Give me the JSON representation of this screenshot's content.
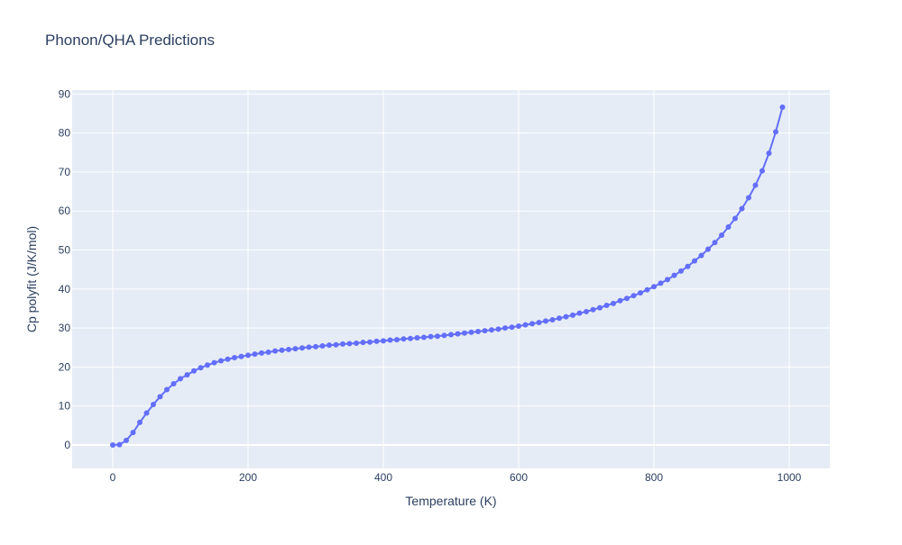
{
  "chart_data": {
    "type": "line",
    "title": "Phonon/QHA Predictions",
    "xlabel": "Temperature (K)",
    "ylabel": "Cp polyfit (J/K/mol)",
    "xlim": [
      -60,
      1060
    ],
    "ylim": [
      -6,
      91
    ],
    "xticks": [
      0,
      200,
      400,
      600,
      800,
      1000
    ],
    "yticks": [
      0,
      10,
      20,
      30,
      40,
      50,
      60,
      70,
      80,
      90
    ],
    "grid": true,
    "legend": "none",
    "colors": {
      "line": "#636efa",
      "plot_bg": "#e5ecf6",
      "grid": "#ffffff",
      "text": "#2a3f5f"
    },
    "series": [
      {
        "x": [
          0,
          10,
          20,
          30,
          40,
          50,
          60,
          70,
          80,
          90,
          100,
          110,
          120,
          130,
          140,
          150,
          160,
          170,
          180,
          190,
          200,
          210,
          220,
          230,
          240,
          250,
          260,
          270,
          280,
          290,
          300,
          310,
          320,
          330,
          340,
          350,
          360,
          370,
          380,
          390,
          400,
          410,
          420,
          430,
          440,
          450,
          460,
          470,
          480,
          490,
          500,
          510,
          520,
          530,
          540,
          550,
          560,
          570,
          580,
          590,
          600,
          610,
          620,
          630,
          640,
          650,
          660,
          670,
          680,
          690,
          700,
          710,
          720,
          730,
          740,
          750,
          760,
          770,
          780,
          790,
          800,
          810,
          820,
          830,
          840,
          850,
          860,
          870,
          880,
          890,
          900,
          910,
          920,
          930,
          940,
          950,
          960,
          970,
          980,
          990
        ],
        "y": [
          0,
          0.1,
          1.2,
          3.2,
          5.8,
          8.2,
          10.4,
          12.4,
          14.2,
          15.7,
          17,
          18,
          19,
          19.8,
          20.5,
          21.1,
          21.6,
          22,
          22.4,
          22.7,
          23,
          23.3,
          23.6,
          23.8,
          24.1,
          24.3,
          24.5,
          24.7,
          24.9,
          25.1,
          25.2,
          25.4,
          25.6,
          25.7,
          25.9,
          26,
          26.1,
          26.3,
          26.4,
          26.6,
          26.7,
          26.9,
          27,
          27.2,
          27.3,
          27.5,
          27.6,
          27.8,
          27.9,
          28.1,
          28.3,
          28.5,
          28.7,
          28.9,
          29.1,
          29.3,
          29.5,
          29.7,
          30,
          30.2,
          30.5,
          30.8,
          31.1,
          31.4,
          31.8,
          32.1,
          32.5,
          32.9,
          33.3,
          33.8,
          34.2,
          34.7,
          35.2,
          35.8,
          36.3,
          37,
          37.6,
          38.3,
          39,
          39.8,
          40.6,
          41.5,
          42.4,
          43.5,
          44.6,
          45.8,
          47.2,
          48.6,
          50.2,
          51.9,
          53.8,
          55.9,
          58.1,
          60.6,
          63.4,
          66.6,
          70.3,
          74.8,
          80.3,
          86.6
        ]
      }
    ]
  }
}
